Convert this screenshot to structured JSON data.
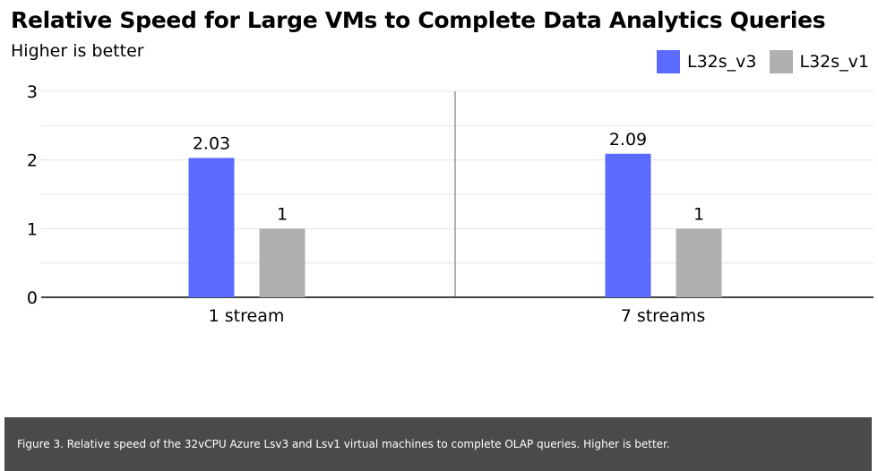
{
  "header": {
    "title": "Relative Speed for Large VMs to Complete Data Analytics Queries",
    "subtitle": "Higher is better"
  },
  "legend": [
    {
      "label": "L32s_v3",
      "color": "#5b6bff"
    },
    {
      "label": "L32s_v1",
      "color": "#b0b0b0"
    }
  ],
  "footer": {
    "caption": "Figure 3. Relative speed of the 32vCPU Azure Lsv3 and Lsv1 virtual machines to complete OLAP queries. Higher is better."
  },
  "chart_data": {
    "type": "bar",
    "title": "Relative Speed for Large VMs to Complete Data Analytics Queries",
    "subtitle": "Higher is better",
    "categories": [
      "1 stream",
      "7 streams"
    ],
    "series": [
      {
        "name": "L32s_v3",
        "values": [
          2.03,
          2.09
        ],
        "labels": [
          "2.03",
          "2.09"
        ],
        "color": "#5b6bff"
      },
      {
        "name": "L32s_v1",
        "values": [
          1,
          1
        ],
        "labels": [
          "1",
          "1"
        ],
        "color": "#b0b0b0"
      }
    ],
    "ylim": [
      0,
      3
    ],
    "yticks": [
      "0",
      "1",
      "2",
      "3"
    ],
    "xlabel": "",
    "ylabel": "",
    "grid": true,
    "legend_position": "top-right"
  }
}
